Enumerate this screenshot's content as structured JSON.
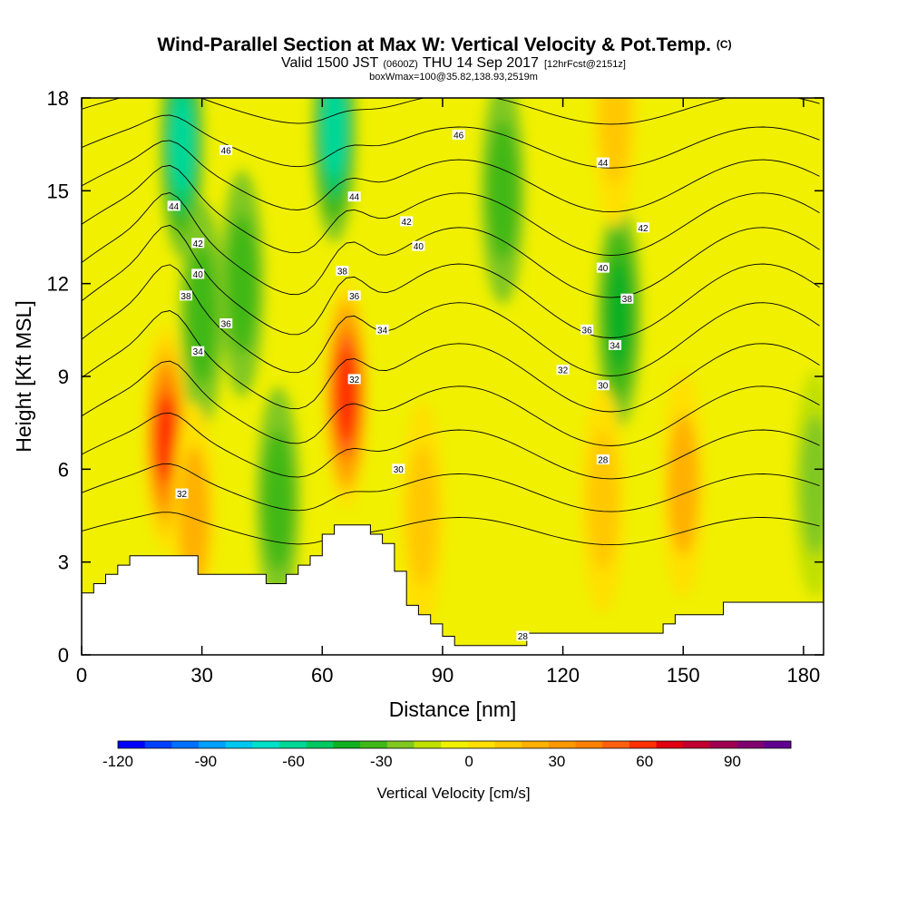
{
  "header": {
    "title": "Wind-Parallel Section at Max W: Vertical Velocity & Pot.Temp.",
    "title_suffix": "(C)",
    "line2_a": "Valid 1500 JST",
    "line2_b": "(0600Z)",
    "line2_c": "THU 14 Sep 2017",
    "line2_d": "[12hrFcst@2151z]",
    "line3": "boxWmax=100@35.82,138.93,2519m"
  },
  "chart_data": {
    "type": "heatmap",
    "xlabel": "Distance [nm]",
    "ylabel": "Height [Kft MSL]",
    "xlim": [
      0,
      185
    ],
    "ylim": [
      0,
      18
    ],
    "xticks": [
      "0",
      "30",
      "60",
      "90",
      "120",
      "150",
      "180"
    ],
    "yticks": [
      "0",
      "3",
      "6",
      "9",
      "12",
      "15",
      "18"
    ],
    "colorbar": {
      "label": "Vertical Velocity [cm/s]",
      "range": [
        -120,
        110
      ],
      "step": 10,
      "tick_labels": [
        "-120",
        "-90",
        "-60",
        "-30",
        "0",
        "30",
        "60",
        "90"
      ],
      "colors": [
        "#0000ff",
        "#0040ff",
        "#0070ff",
        "#00a0ff",
        "#00c8f0",
        "#00e0c8",
        "#00d898",
        "#00c860",
        "#10b020",
        "#40b818",
        "#80c820",
        "#c0e000",
        "#f0f000",
        "#ffe000",
        "#ffc800",
        "#ffb000",
        "#ff9800",
        "#ff8000",
        "#ff6010",
        "#ff3000",
        "#e00010",
        "#c00030",
        "#a00050",
        "#800070",
        "#600090"
      ]
    },
    "updrafts": [
      {
        "x": 21,
        "z": 7.0,
        "w": 70
      },
      {
        "x": 66,
        "z": 8.4,
        "w": 75
      },
      {
        "x": 28,
        "z": 4.5,
        "w": 30
      },
      {
        "x": 85,
        "z": 4.5,
        "w": 20
      },
      {
        "x": 130,
        "z": 5.0,
        "w": 25
      },
      {
        "x": 150,
        "z": 5.5,
        "w": 30
      },
      {
        "x": 133,
        "z": 17.5,
        "w": 25
      }
    ],
    "downdrafts": [
      {
        "x": 25,
        "z": 16.5,
        "w": -60
      },
      {
        "x": 63,
        "z": 17.0,
        "w": -60
      },
      {
        "x": 30,
        "z": 11.0,
        "w": -30
      },
      {
        "x": 40,
        "z": 12.0,
        "w": -30
      },
      {
        "x": 105,
        "z": 15.0,
        "w": -30
      },
      {
        "x": 134,
        "z": 11.0,
        "w": -40
      },
      {
        "x": 49,
        "z": 5.0,
        "w": -25
      },
      {
        "x": 183,
        "z": 5.5,
        "w": -20
      }
    ],
    "theta_labels": [
      {
        "text": "46",
        "x": 36,
        "z": 16.3
      },
      {
        "text": "46",
        "x": 94,
        "z": 16.8
      },
      {
        "text": "44",
        "x": 23,
        "z": 14.5
      },
      {
        "text": "44",
        "x": 68,
        "z": 14.8
      },
      {
        "text": "44",
        "x": 130,
        "z": 15.9
      },
      {
        "text": "42",
        "x": 29,
        "z": 13.3
      },
      {
        "text": "42",
        "x": 81,
        "z": 14.0
      },
      {
        "text": "42",
        "x": 140,
        "z": 13.8
      },
      {
        "text": "40",
        "x": 29,
        "z": 12.3
      },
      {
        "text": "40",
        "x": 84,
        "z": 13.2
      },
      {
        "text": "40",
        "x": 130,
        "z": 12.5
      },
      {
        "text": "38",
        "x": 26,
        "z": 11.6
      },
      {
        "text": "38",
        "x": 65,
        "z": 12.4
      },
      {
        "text": "38",
        "x": 136,
        "z": 11.5
      },
      {
        "text": "36",
        "x": 36,
        "z": 10.7
      },
      {
        "text": "36",
        "x": 68,
        "z": 11.6
      },
      {
        "text": "36",
        "x": 126,
        "z": 10.5
      },
      {
        "text": "34",
        "x": 29,
        "z": 9.8
      },
      {
        "text": "34",
        "x": 75,
        "z": 10.5
      },
      {
        "text": "34",
        "x": 133,
        "z": 10.0
      },
      {
        "text": "32",
        "x": 68,
        "z": 8.9
      },
      {
        "text": "32",
        "x": 120,
        "z": 9.2
      },
      {
        "text": "32",
        "x": 25,
        "z": 5.2
      },
      {
        "text": "30",
        "x": 79,
        "z": 6.0
      },
      {
        "text": "30",
        "x": 130,
        "z": 8.7
      },
      {
        "text": "28",
        "x": 130,
        "z": 6.3
      },
      {
        "text": "28",
        "x": 110,
        "z": 0.6
      }
    ],
    "terrain": [
      [
        0,
        2.0
      ],
      [
        3,
        2.0
      ],
      [
        3,
        2.3
      ],
      [
        6,
        2.3
      ],
      [
        6,
        2.6
      ],
      [
        9,
        2.6
      ],
      [
        9,
        2.9
      ],
      [
        12,
        2.9
      ],
      [
        12,
        3.2
      ],
      [
        29,
        3.2
      ],
      [
        29,
        2.6
      ],
      [
        46,
        2.6
      ],
      [
        46,
        2.3
      ],
      [
        51,
        2.3
      ],
      [
        51,
        2.6
      ],
      [
        54,
        2.6
      ],
      [
        54,
        2.9
      ],
      [
        57,
        2.9
      ],
      [
        57,
        3.2
      ],
      [
        60,
        3.2
      ],
      [
        60,
        3.9
      ],
      [
        63,
        3.9
      ],
      [
        63,
        4.2
      ],
      [
        72,
        4.2
      ],
      [
        72,
        3.9
      ],
      [
        75,
        3.9
      ],
      [
        75,
        3.6
      ],
      [
        78,
        3.6
      ],
      [
        78,
        3.3
      ],
      [
        78,
        2.7
      ],
      [
        81,
        2.7
      ],
      [
        81,
        1.6
      ],
      [
        84,
        1.6
      ],
      [
        84,
        1.3
      ],
      [
        87,
        1.3
      ],
      [
        87,
        1.0
      ],
      [
        90,
        1.0
      ],
      [
        90,
        0.6
      ],
      [
        93,
        0.6
      ],
      [
        93,
        0.3
      ],
      [
        111,
        0.3
      ],
      [
        111,
        0.7
      ],
      [
        145,
        0.7
      ],
      [
        145,
        1.0
      ],
      [
        148,
        1.0
      ],
      [
        148,
        1.3
      ],
      [
        160,
        1.3
      ],
      [
        160,
        1.7
      ],
      [
        185,
        1.7
      ]
    ]
  }
}
